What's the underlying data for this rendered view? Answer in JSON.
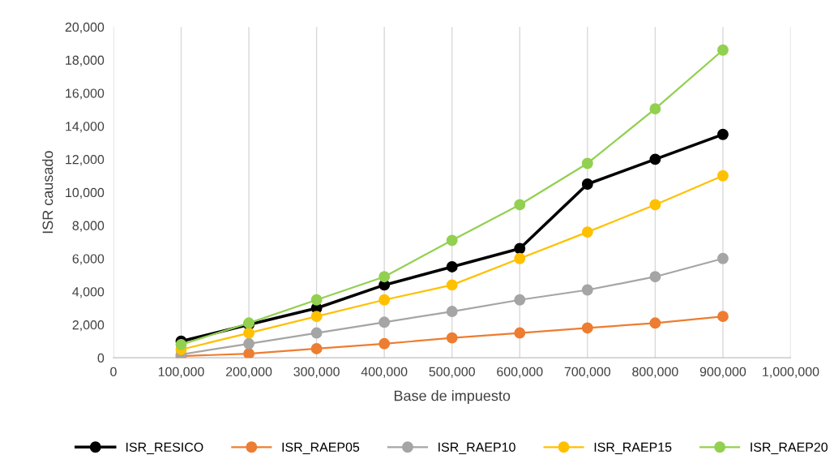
{
  "chart_data": {
    "type": "line",
    "xlabel": "Base de impuesto",
    "ylabel": "ISR causado",
    "x": [
      100000,
      200000,
      300000,
      400000,
      500000,
      600000,
      700000,
      800000,
      900000
    ],
    "series": [
      {
        "name": "ISR_RESICO",
        "color": "#000000",
        "values": [
          1000,
          2000,
          3000,
          4400,
          5500,
          6600,
          10500,
          12000,
          13500
        ]
      },
      {
        "name": "ISR_RAEP05",
        "color": "#ed7d31",
        "values": [
          100,
          250,
          550,
          850,
          1200,
          1500,
          1800,
          2100,
          2500
        ]
      },
      {
        "name": "ISR_RAEP10",
        "color": "#a5a5a5",
        "values": [
          200,
          850,
          1500,
          2150,
          2800,
          3500,
          4100,
          4900,
          6000
        ]
      },
      {
        "name": "ISR_RAEP15",
        "color": "#ffc000",
        "values": [
          500,
          1500,
          2500,
          3500,
          4400,
          6000,
          7600,
          9250,
          11000
        ]
      },
      {
        "name": "ISR_RAEP20",
        "color": "#92d050",
        "values": [
          800,
          2100,
          3500,
          4900,
          7100,
          9250,
          11750,
          15050,
          18600
        ]
      }
    ],
    "xlim": [
      0,
      1000000
    ],
    "xticks": [
      0,
      {
        "value": 100000,
        "label": "100,000"
      },
      {
        "value": 200000,
        "label": "200,000"
      },
      {
        "value": 300000,
        "label": "300,000"
      },
      {
        "value": 400000,
        "label": "400,000"
      },
      {
        "value": 500000,
        "label": "500,000"
      },
      {
        "value": 600000,
        "label": "600,000"
      },
      {
        "value": 700000,
        "label": "700,000"
      },
      {
        "value": 800000,
        "label": "800,000"
      },
      {
        "value": 900000,
        "label": "900,000"
      },
      {
        "value": 1000000,
        "label": "1,000,000"
      }
    ],
    "ylim": [
      0,
      20000
    ],
    "yticks": [
      0,
      {
        "value": 2000,
        "label": "2,000"
      },
      {
        "value": 4000,
        "label": "4,000"
      },
      {
        "value": 6000,
        "label": "6,000"
      },
      {
        "value": 8000,
        "label": "8,000"
      },
      {
        "value": 10000,
        "label": "10,000"
      },
      {
        "value": 12000,
        "label": "12,000"
      },
      {
        "value": 14000,
        "label": "14,000"
      },
      {
        "value": 16000,
        "label": "16,000"
      },
      {
        "value": 18000,
        "label": "18,000"
      },
      {
        "value": 20000,
        "label": "20,000"
      }
    ],
    "grid": "x",
    "legend": "bottom",
    "marker": "circle",
    "line_style": "solid"
  }
}
